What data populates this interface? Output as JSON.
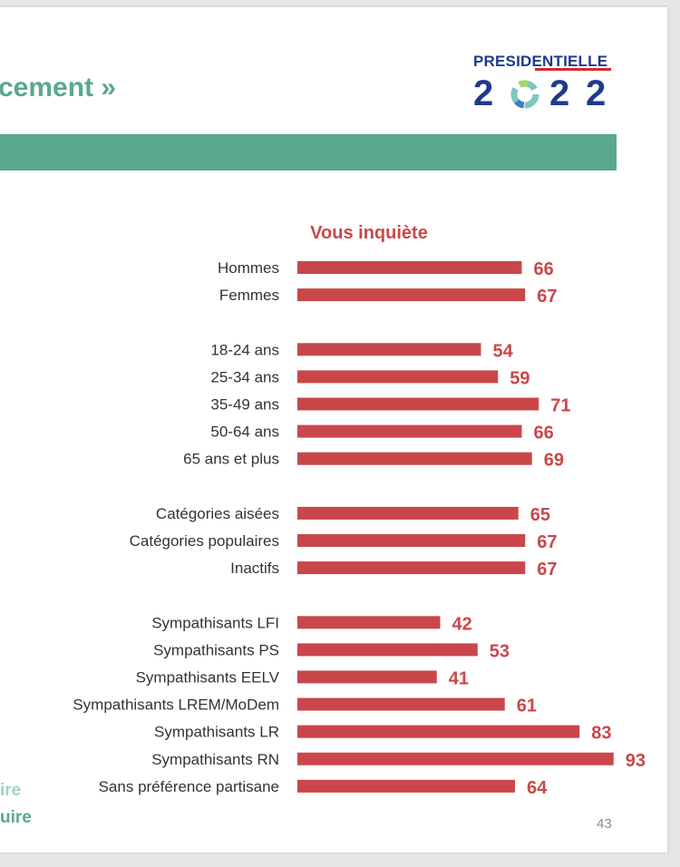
{
  "slide": {
    "title": "cement »",
    "page_number": "43",
    "footer_line1": "ire",
    "footer_line2": "uire"
  },
  "logo": {
    "word": "PRESIDENTIELLE",
    "year_digits": [
      "2",
      "0",
      "2",
      "2"
    ]
  },
  "colors": {
    "accent_green": "#5aa88f",
    "bar_red": "#c9474a",
    "logo_blue": "#1f3a8a"
  },
  "chart_data": {
    "type": "bar",
    "orientation": "horizontal",
    "title": "Vous inquiète",
    "categories": [
      "Hommes",
      "Femmes",
      "18-24 ans",
      "25-34 ans",
      "35-49 ans",
      "50-64 ans",
      "65 ans et plus",
      "Catégories aisées",
      "Catégories populaires",
      "Inactifs",
      "Sympathisants LFI",
      "Sympathisants PS",
      "Sympathisants EELV",
      "Sympathisants LREM/MoDem",
      "Sympathisants LR",
      "Sympathisants RN",
      "Sans préférence partisane"
    ],
    "groups": [
      2,
      5,
      3,
      7
    ],
    "values": [
      66,
      67,
      54,
      59,
      71,
      66,
      69,
      65,
      67,
      67,
      42,
      53,
      41,
      61,
      83,
      93,
      64
    ],
    "xlim": [
      0,
      100
    ],
    "grid": false,
    "data_labels": true
  }
}
